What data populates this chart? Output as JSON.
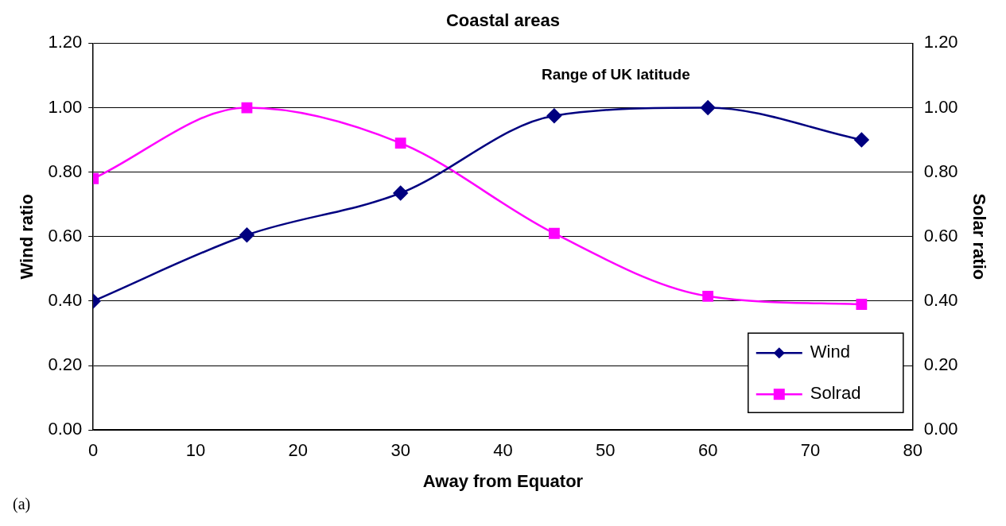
{
  "chart_data": {
    "type": "line",
    "title": "Coastal areas",
    "xlabel": "Away from Equator",
    "ylabel": "Wind ratio",
    "y2label": "Solar ratio",
    "x": [
      0,
      15,
      30,
      45,
      60,
      75
    ],
    "series": [
      {
        "name": "Wind",
        "color": "#000080",
        "values": [
          0.4,
          0.605,
          0.735,
          0.975,
          1.0,
          0.9
        ],
        "marker": "diamond"
      },
      {
        "name": "Solrad",
        "color": "#ff00ff",
        "values": [
          0.78,
          1.0,
          0.89,
          0.61,
          0.415,
          0.39
        ],
        "marker": "square",
        "axis": "y2"
      }
    ],
    "xlim": [
      0,
      80
    ],
    "xticks": [
      0,
      10,
      20,
      30,
      40,
      50,
      60,
      70,
      80
    ],
    "ylim": [
      0,
      1.2
    ],
    "yticks": [
      {
        "value": 0,
        "label": "0.00"
      },
      {
        "value": 0.2,
        "label": "0.20"
      },
      {
        "value": 0.4,
        "label": "0.40"
      },
      {
        "value": 0.6,
        "label": "0.60"
      },
      {
        "value": 0.8,
        "label": "0.80"
      },
      {
        "value": 1,
        "label": "1.00"
      },
      {
        "value": 1.2,
        "label": "1.20"
      }
    ],
    "y2lim": [
      0,
      1.2
    ],
    "y2ticks": [
      {
        "value": 0,
        "label": "0.00"
      },
      {
        "value": 0.2,
        "label": "0.20"
      },
      {
        "value": 0.4,
        "label": "0.40"
      },
      {
        "value": 0.6,
        "label": "0.60"
      },
      {
        "value": 0.8,
        "label": "0.80"
      },
      {
        "value": 1,
        "label": "1.00"
      },
      {
        "value": 1.2,
        "label": "1.20"
      }
    ],
    "annotations": [
      "Range of UK latitude",
      "(a)"
    ],
    "grid": "y",
    "legend": "bottom right"
  }
}
